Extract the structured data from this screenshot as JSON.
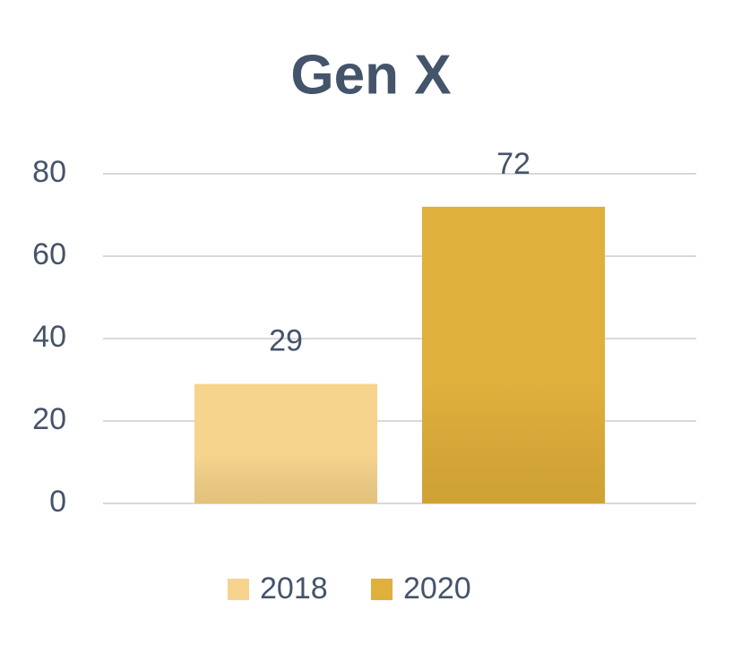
{
  "chart_data": {
    "type": "bar",
    "title": "Gen X",
    "categories": [
      null
    ],
    "series": [
      {
        "name": "2018",
        "color": "#f6d48e",
        "values": [
          29
        ]
      },
      {
        "name": "2020",
        "color": "#e0b03c",
        "values": [
          72
        ]
      }
    ],
    "ylim": [
      0,
      80
    ],
    "yticks": [
      0,
      20,
      40,
      60,
      80
    ],
    "grid": true,
    "legend": "bottom"
  }
}
